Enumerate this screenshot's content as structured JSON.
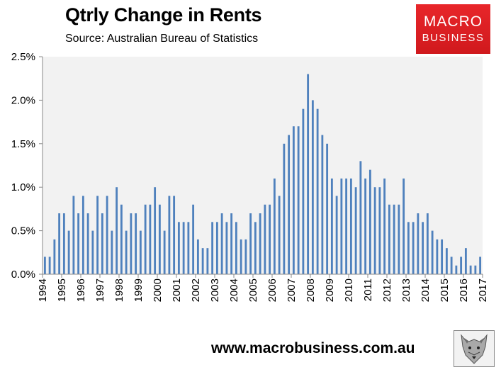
{
  "header": {
    "title": "Qtrly Change in Rents",
    "subtitle": "Source: Australian Bureau of Statistics"
  },
  "logo": {
    "line1": "MACRO",
    "line2": "BUSINESS"
  },
  "footer": {
    "website": "www.macrobusiness.com.au"
  },
  "colors": {
    "bar": "#4f81bd",
    "plot_bg": "#f2f2f2",
    "logo_bg": "#e2242a"
  },
  "icons": {
    "footer_image": "wolf-head-icon"
  },
  "chart_data": {
    "type": "bar",
    "title": "Qtrly Change in Rents",
    "subtitle": "Source: Australian Bureau of Statistics",
    "xlabel": "",
    "ylabel": "",
    "ylim": [
      0,
      2.5
    ],
    "yticks": [
      "0.0%",
      "0.5%",
      "1.0%",
      "1.5%",
      "2.0%",
      "2.5%"
    ],
    "xticks": [
      "1994",
      "1995",
      "1996",
      "1997",
      "1998",
      "1999",
      "2000",
      "2001",
      "2002",
      "2003",
      "2004",
      "2005",
      "2006",
      "2007",
      "2008",
      "2009",
      "2010",
      "2011",
      "2012",
      "2013",
      "2014",
      "2015",
      "2016",
      "2017"
    ],
    "grid": false,
    "legend": "none",
    "values": [
      0.2,
      0.2,
      0.4,
      0.7,
      0.7,
      0.5,
      0.9,
      0.7,
      0.9,
      0.7,
      0.5,
      0.9,
      0.7,
      0.9,
      0.5,
      1.0,
      0.8,
      0.5,
      0.7,
      0.7,
      0.5,
      0.8,
      0.8,
      1.0,
      0.8,
      0.5,
      0.9,
      0.9,
      0.6,
      0.6,
      0.6,
      0.8,
      0.4,
      0.3,
      0.3,
      0.6,
      0.6,
      0.7,
      0.6,
      0.7,
      0.6,
      0.4,
      0.4,
      0.7,
      0.6,
      0.7,
      0.8,
      0.8,
      1.1,
      0.9,
      1.5,
      1.6,
      1.7,
      1.7,
      1.9,
      2.3,
      2.0,
      1.9,
      1.6,
      1.5,
      1.1,
      0.9,
      1.1,
      1.1,
      1.1,
      1.0,
      1.3,
      1.1,
      1.2,
      1.0,
      1.0,
      1.1,
      0.8,
      0.8,
      0.8,
      1.1,
      0.6,
      0.6,
      0.7,
      0.6,
      0.7,
      0.5,
      0.4,
      0.4,
      0.3,
      0.2,
      0.1,
      0.2,
      0.3,
      0.1,
      0.1,
      0.2
    ]
  }
}
